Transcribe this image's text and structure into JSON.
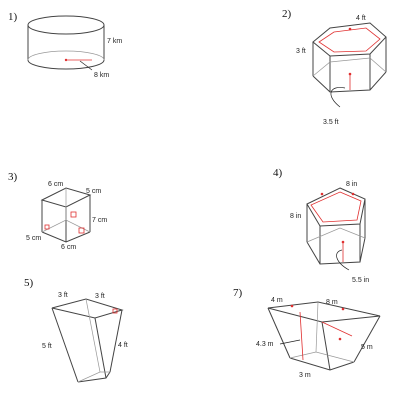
{
  "problems": [
    {
      "number": "1)",
      "shape": "cylinder-icon",
      "labels": {
        "height": "7 km",
        "radius": "8 km"
      }
    },
    {
      "number": "2)",
      "shape": "hexagonal-prism-icon",
      "labels": {
        "side": "4 ft",
        "height": "3 ft",
        "apothem": "3.5 ft"
      }
    },
    {
      "number": "3)",
      "shape": "square-prism-icon",
      "labels": {
        "top_edge": "6 cm",
        "right_top": "5 cm",
        "height": "7 cm",
        "left_bottom": "5 cm",
        "bottom_edge": "6 cm"
      }
    },
    {
      "number": "4)",
      "shape": "pentagonal-prism-icon",
      "labels": {
        "side": "8 in",
        "height": "8 in",
        "apothem": "5.5 in"
      }
    },
    {
      "number": "5)",
      "shape": "trapezoidal-prism-icon",
      "labels": {
        "top_left": "3 ft",
        "top_right": "3 ft",
        "slant": "5 ft",
        "side": "4 ft"
      }
    },
    {
      "number": "7)",
      "shape": "frustum-prism-icon",
      "labels": {
        "top_width": "4 m",
        "top_length": "8 m",
        "height": "4.3 m",
        "slant": "5 m",
        "bottom": "3 m"
      }
    }
  ]
}
